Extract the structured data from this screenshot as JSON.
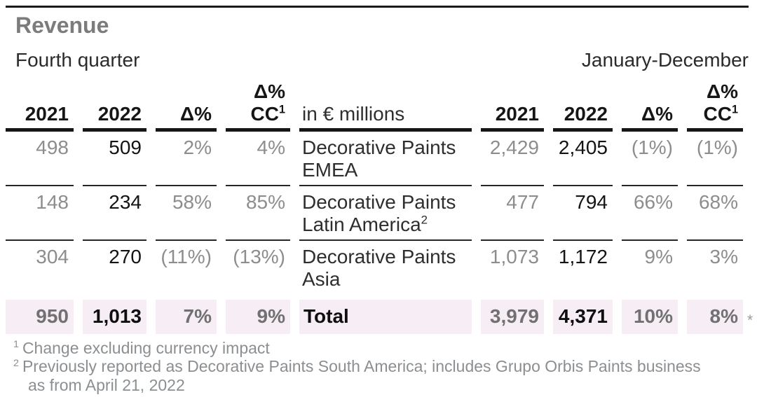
{
  "title": "Revenue",
  "period_left": "Fourth quarter",
  "period_right": "January-December",
  "header": {
    "q4_2021": "2021",
    "q4_2022": "2022",
    "q4_delta": "Δ%",
    "q4_cc_line1": "Δ%",
    "q4_cc_line2": "CC",
    "q4_cc_sup": "1",
    "unit_label": "in € millions",
    "fy_2021": "2021",
    "fy_2022": "2022",
    "fy_delta": "Δ%",
    "fy_cc_line1": "Δ%",
    "fy_cc_line2": "CC",
    "fy_cc_sup": "1"
  },
  "table": {
    "rows": [
      {
        "name_line1": "Decorative Paints",
        "name_line2": "EMEA",
        "name_sup": "",
        "q4": {
          "y2021": "498",
          "y2022": "509",
          "delta": "2%",
          "delta_cc": "4%"
        },
        "fy": {
          "y2021": "2,429",
          "y2022": "2,405",
          "delta": "(1%)",
          "delta_cc": "(1%)"
        }
      },
      {
        "name_line1": "Decorative Paints",
        "name_line2": "Latin America",
        "name_sup": "2",
        "q4": {
          "y2021": "148",
          "y2022": "234",
          "delta": "58%",
          "delta_cc": "85%"
        },
        "fy": {
          "y2021": "477",
          "y2022": "794",
          "delta": "66%",
          "delta_cc": "68%"
        }
      },
      {
        "name_line1": "Decorative Paints",
        "name_line2": "Asia",
        "name_sup": "",
        "q4": {
          "y2021": "304",
          "y2022": "270",
          "delta": "(11%)",
          "delta_cc": "(13%)"
        },
        "fy": {
          "y2021": "1,073",
          "y2022": "1,172",
          "delta": "9%",
          "delta_cc": "3%"
        }
      }
    ],
    "total": {
      "label": "Total",
      "q4": {
        "y2021": "950",
        "y2022": "1,013",
        "delta": "7%",
        "delta_cc": "9%"
      },
      "fy": {
        "y2021": "3,979",
        "y2022": "4,371",
        "delta": "10%",
        "delta_cc": "8%"
      },
      "asterisk": "*"
    }
  },
  "footnotes": [
    {
      "marker": "1",
      "text": "Change excluding currency impact"
    },
    {
      "marker": "2",
      "text": "Previously reported as Decorative Paints South America; includes Grupo Orbis Paints business\nas from April 21, 2022"
    }
  ],
  "colors": {
    "highlight_pink": "#f7eef5",
    "rule_black": "#1a1a1a",
    "muted_value_gray": "#8d8d8d",
    "title_gray": "#7c7c7c"
  }
}
